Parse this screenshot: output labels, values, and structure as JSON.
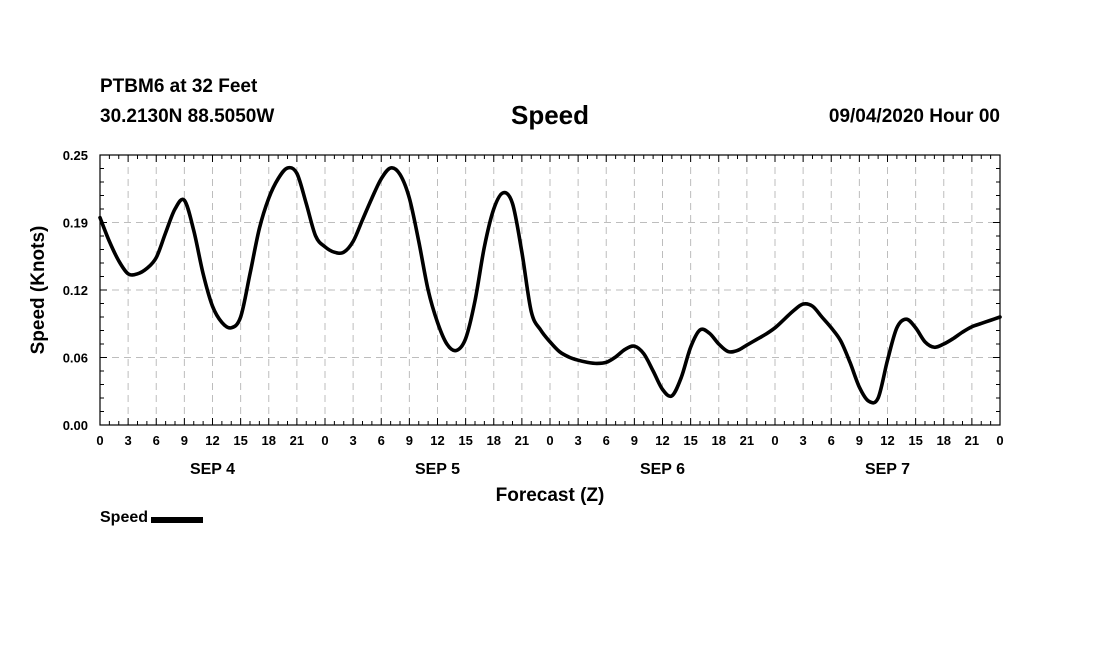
{
  "header": {
    "station": "PTBM6 at 32 Feet",
    "coordinates": "30.2130N 88.5050W",
    "title": "Speed",
    "datetime": "09/04/2020 Hour 00"
  },
  "chart_data": {
    "type": "line",
    "title": "Speed",
    "xlabel": "Forecast (Z)",
    "ylabel": "Speed (Knots)",
    "ylim": [
      0,
      0.25
    ],
    "xlim": [
      0,
      96
    ],
    "grid": true,
    "yticks": [
      "0.00",
      "0.06",
      "0.12",
      "0.19",
      "0.25"
    ],
    "yticks_values": [
      0,
      0.0625,
      0.125,
      0.1875,
      0.25
    ],
    "xticks": [
      "0",
      "3",
      "6",
      "9",
      "12",
      "15",
      "18",
      "21",
      "0",
      "3",
      "6",
      "9",
      "12",
      "15",
      "18",
      "21",
      "0",
      "3",
      "6",
      "9",
      "12",
      "15",
      "18",
      "21",
      "0",
      "3",
      "6",
      "9",
      "12",
      "15",
      "18",
      "21",
      "0"
    ],
    "day_labels": [
      {
        "label": "SEP 4",
        "hour": 12
      },
      {
        "label": "SEP 5",
        "hour": 36
      },
      {
        "label": "SEP 6",
        "hour": 60
      },
      {
        "label": "SEP 7",
        "hour": 84
      }
    ],
    "legend_position": "bottom-left",
    "series": [
      {
        "name": "Speed",
        "color": "#000000",
        "x": [
          0,
          1,
          2,
          3,
          4,
          5,
          6,
          7,
          8,
          9,
          10,
          11,
          12,
          13,
          14,
          15,
          16,
          17,
          18,
          19,
          20,
          21,
          22,
          23,
          24,
          25,
          26,
          27,
          28,
          29,
          30,
          31,
          32,
          33,
          34,
          35,
          36,
          37,
          38,
          39,
          40,
          41,
          42,
          43,
          44,
          45,
          46,
          47,
          48,
          49,
          50,
          51,
          52,
          53,
          54,
          55,
          56,
          57,
          58,
          59,
          60,
          61,
          62,
          63,
          64,
          65,
          66,
          67,
          68,
          69,
          70,
          71,
          72,
          73,
          74,
          75,
          76,
          77,
          78,
          79,
          80,
          81,
          82,
          83,
          84,
          85,
          86,
          87,
          88,
          89,
          90,
          91,
          92,
          93,
          94,
          95,
          96
        ],
        "values": [
          0.192,
          0.17,
          0.152,
          0.14,
          0.14,
          0.145,
          0.155,
          0.178,
          0.2,
          0.208,
          0.18,
          0.14,
          0.11,
          0.095,
          0.09,
          0.1,
          0.14,
          0.182,
          0.21,
          0.228,
          0.238,
          0.233,
          0.205,
          0.175,
          0.165,
          0.16,
          0.16,
          0.17,
          0.19,
          0.21,
          0.228,
          0.238,
          0.232,
          0.21,
          0.17,
          0.125,
          0.095,
          0.075,
          0.069,
          0.08,
          0.115,
          0.165,
          0.2,
          0.215,
          0.205,
          0.16,
          0.105,
          0.088,
          0.077,
          0.068,
          0.063,
          0.06,
          0.058,
          0.057,
          0.058,
          0.063,
          0.07,
          0.073,
          0.066,
          0.05,
          0.033,
          0.027,
          0.044,
          0.072,
          0.088,
          0.085,
          0.075,
          0.068,
          0.069,
          0.074,
          0.079,
          0.084,
          0.09,
          0.098,
          0.106,
          0.112,
          0.11,
          0.1,
          0.09,
          0.078,
          0.058,
          0.035,
          0.022,
          0.025,
          0.06,
          0.09,
          0.098,
          0.09,
          0.077,
          0.072,
          0.075,
          0.08,
          0.086,
          0.091,
          0.094,
          0.097,
          0.1
        ]
      }
    ]
  },
  "legend": {
    "label": "Speed"
  }
}
